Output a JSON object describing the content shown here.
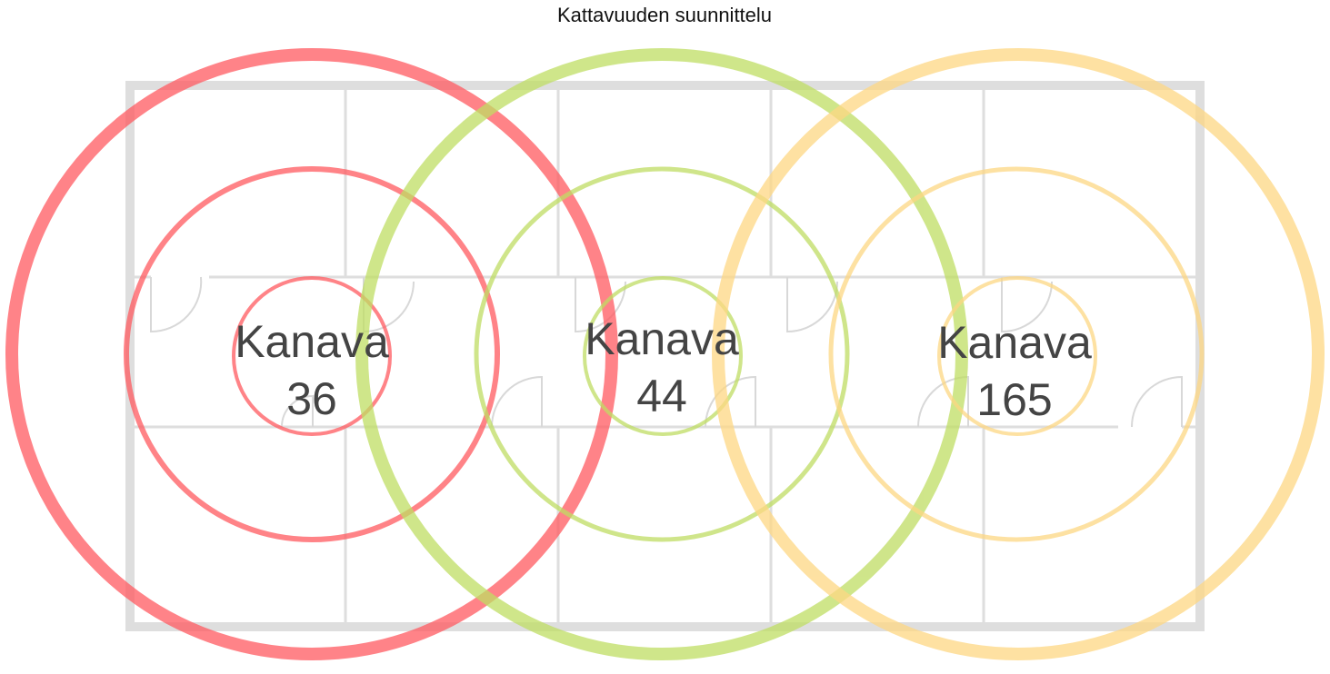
{
  "title": "Kattavuuden suunnittelu",
  "nodes": [
    {
      "label": "Kanava",
      "channel": "36"
    },
    {
      "label": "Kanava",
      "channel": "44"
    },
    {
      "label": "Kanava",
      "channel": "165"
    }
  ]
}
